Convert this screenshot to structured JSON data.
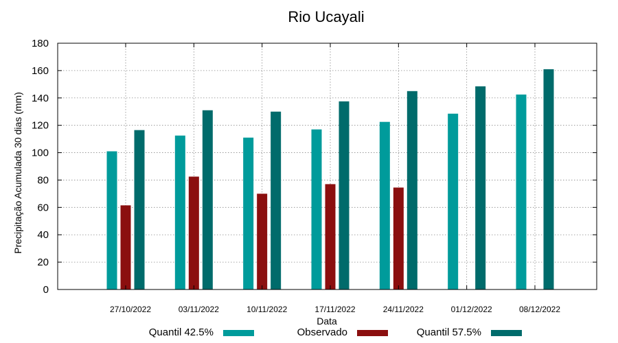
{
  "chart_data": {
    "type": "bar",
    "title": "Rio Ucayali",
    "xlabel": "Data",
    "ylabel": "Precipitação Acumulada 30 dias (mm)",
    "ylim": [
      0,
      180
    ],
    "yticks": [
      0,
      20,
      40,
      60,
      80,
      100,
      120,
      140,
      160,
      180
    ],
    "grid": true,
    "legend_position": "bottom",
    "categories": [
      "27/10/2022",
      "03/11/2022",
      "10/11/2022",
      "17/11/2022",
      "24/11/2022",
      "01/12/2022",
      "08/12/2022"
    ],
    "series": [
      {
        "name": "Quantil 42.5%",
        "color": "#009b9b",
        "values": [
          101,
          112.5,
          111,
          117,
          122.5,
          128.5,
          142.5
        ]
      },
      {
        "name": "Observado",
        "color": "#8b0f0f",
        "values": [
          61.5,
          82.5,
          70,
          77,
          74.5,
          null,
          null
        ]
      },
      {
        "name": "Quantil 57.5%",
        "color": "#006b6b",
        "values": [
          116.5,
          131,
          130,
          137.5,
          145,
          148.5,
          161
        ]
      }
    ]
  }
}
